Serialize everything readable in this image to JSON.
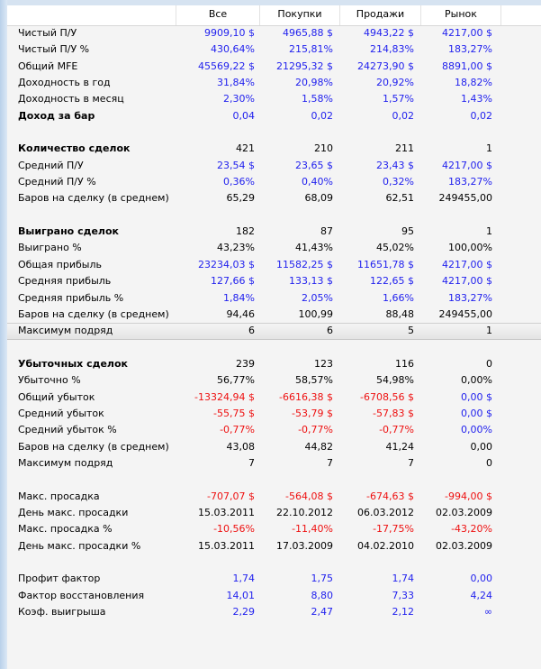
{
  "columns": [
    "Все",
    "Покупки",
    "Продажи",
    "Рынок"
  ],
  "rows": [
    {
      "label": "Чистый П/У",
      "color": "pos",
      "values": [
        "9909,10 $",
        "4965,88 $",
        "4943,22 $",
        "4217,00 $"
      ]
    },
    {
      "label": "Чистый П/У %",
      "color": "pos",
      "values": [
        "430,64%",
        "215,81%",
        "214,83%",
        "183,27%"
      ]
    },
    {
      "label": "Общий MFE",
      "color": "pos",
      "values": [
        "45569,22 $",
        "21295,32 $",
        "24273,90 $",
        "8891,00 $"
      ]
    },
    {
      "label": "Доходность в год",
      "color": "pos",
      "values": [
        "31,84%",
        "20,98%",
        "20,92%",
        "18,82%"
      ]
    },
    {
      "label": "Доходность в месяц",
      "color": "pos",
      "values": [
        "2,30%",
        "1,58%",
        "1,57%",
        "1,43%"
      ]
    },
    {
      "label": "Доход за бар",
      "bold": true,
      "color": "pos",
      "values": [
        "0,04",
        "0,02",
        "0,02",
        "0,02"
      ]
    },
    {
      "blank": true
    },
    {
      "label": "Количество сделок",
      "bold": true,
      "color": "blk",
      "values": [
        "421",
        "210",
        "211",
        "1"
      ]
    },
    {
      "label": "Средний П/У",
      "color": "pos",
      "values": [
        "23,54 $",
        "23,65 $",
        "23,43 $",
        "4217,00 $"
      ]
    },
    {
      "label": "Средний П/У %",
      "color": "pos",
      "values": [
        "0,36%",
        "0,40%",
        "0,32%",
        "183,27%"
      ]
    },
    {
      "label": "Баров на сделку (в среднем)",
      "color": "blk",
      "values": [
        "65,29",
        "68,09",
        "62,51",
        "249455,00"
      ]
    },
    {
      "blank": true
    },
    {
      "label": "Выиграно сделок",
      "bold": true,
      "color": "blk",
      "values": [
        "182",
        "87",
        "95",
        "1"
      ]
    },
    {
      "label": "Выиграно %",
      "color": "blk",
      "values": [
        "43,23%",
        "41,43%",
        "45,02%",
        "100,00%"
      ]
    },
    {
      "label": "Общая прибыль",
      "color": "pos",
      "values": [
        "23234,03 $",
        "11582,25 $",
        "11651,78 $",
        "4217,00 $"
      ]
    },
    {
      "label": "Средняя прибыль",
      "color": "pos",
      "values": [
        "127,66 $",
        "133,13 $",
        "122,65 $",
        "4217,00 $"
      ]
    },
    {
      "label": "Средняя прибыль %",
      "color": "pos",
      "values": [
        "1,84%",
        "2,05%",
        "1,66%",
        "183,27%"
      ]
    },
    {
      "label": "Баров на сделку (в среднем)",
      "color": "blk",
      "values": [
        "94,46",
        "100,99",
        "88,48",
        "249455,00"
      ]
    },
    {
      "label": "Максимум подряд",
      "selected": true,
      "color": "blk",
      "values": [
        "6",
        "6",
        "5",
        "1"
      ]
    },
    {
      "blank": true
    },
    {
      "label": "Убыточных сделок",
      "bold": true,
      "color": "blk",
      "values": [
        "239",
        "123",
        "116",
        "0"
      ]
    },
    {
      "label": "Убыточно %",
      "color": "blk",
      "values": [
        "56,77%",
        "58,57%",
        "54,98%",
        "0,00%"
      ]
    },
    {
      "label": "Общий убыток",
      "color": "neg",
      "colors": [
        "neg",
        "neg",
        "neg",
        "pos"
      ],
      "values": [
        "-13324,94 $",
        "-6616,38 $",
        "-6708,56 $",
        "0,00 $"
      ]
    },
    {
      "label": "Средний убыток",
      "color": "neg",
      "colors": [
        "neg",
        "neg",
        "neg",
        "pos"
      ],
      "values": [
        "-55,75 $",
        "-53,79 $",
        "-57,83 $",
        "0,00 $"
      ]
    },
    {
      "label": "Средний убыток %",
      "color": "neg",
      "colors": [
        "neg",
        "neg",
        "neg",
        "pos"
      ],
      "values": [
        "-0,77%",
        "-0,77%",
        "-0,77%",
        "0,00%"
      ]
    },
    {
      "label": "Баров на сделку (в среднем)",
      "color": "blk",
      "values": [
        "43,08",
        "44,82",
        "41,24",
        "0,00"
      ]
    },
    {
      "label": "Максимум подряд",
      "color": "blk",
      "values": [
        "7",
        "7",
        "7",
        "0"
      ]
    },
    {
      "blank": true
    },
    {
      "label": "Макс. просадка",
      "color": "neg",
      "values": [
        "-707,07 $",
        "-564,08 $",
        "-674,63 $",
        "-994,00 $"
      ]
    },
    {
      "label": "День макс. просадки",
      "color": "blk",
      "values": [
        "15.03.2011",
        "22.10.2012",
        "06.03.2012",
        "02.03.2009"
      ]
    },
    {
      "label": "Макс. просадка %",
      "color": "neg",
      "values": [
        "-10,56%",
        "-11,40%",
        "-17,75%",
        "-43,20%"
      ]
    },
    {
      "label": "День макс. просадки %",
      "color": "blk",
      "values": [
        "15.03.2011",
        "17.03.2009",
        "04.02.2010",
        "02.03.2009"
      ]
    },
    {
      "blank": true
    },
    {
      "label": "Профит фактор",
      "color": "pos",
      "values": [
        "1,74",
        "1,75",
        "1,74",
        "0,00"
      ]
    },
    {
      "label": "Фактор восстановления",
      "color": "pos",
      "values": [
        "14,01",
        "8,80",
        "7,33",
        "4,24"
      ]
    },
    {
      "label": "Коэф. выигрыша",
      "color": "pos",
      "values": [
        "2,29",
        "2,47",
        "2,12",
        "∞"
      ]
    }
  ]
}
